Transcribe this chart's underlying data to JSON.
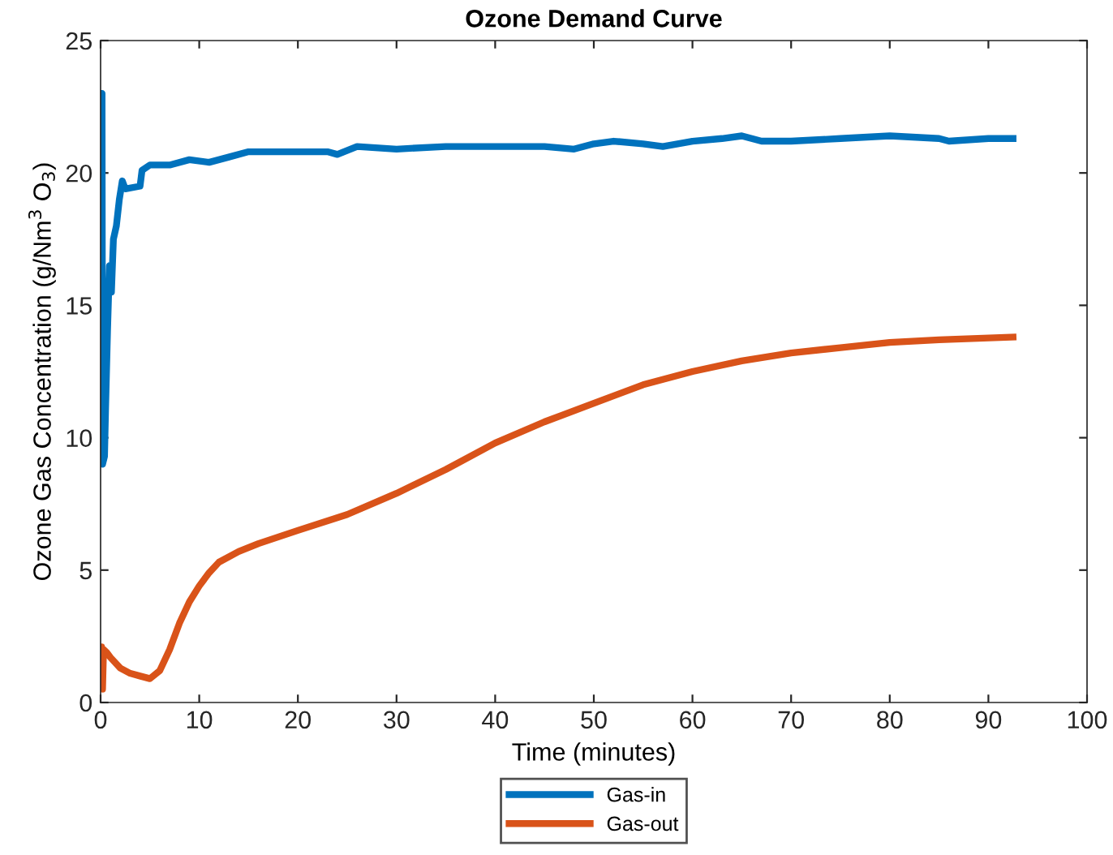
{
  "chart_data": {
    "type": "line",
    "title": "Ozone Demand Curve",
    "xlabel": "Time (minutes)",
    "ylabel": "Ozone Gas Concentration (g/Nm$^{3}$ O$_{3}$)",
    "xlim": [
      0,
      100
    ],
    "xticks": [
      0,
      10,
      20,
      30,
      40,
      50,
      60,
      70,
      80,
      90,
      100
    ],
    "ylim": [
      0,
      25
    ],
    "yticks": [
      0,
      5,
      10,
      15,
      20,
      25
    ],
    "grid": false,
    "legend": "bottom",
    "series": [
      {
        "name": "Gas-in",
        "color": "#0072bd",
        "x": [
          0,
          0.15,
          0.2,
          0.4,
          0.5,
          0.7,
          0.9,
          1.1,
          1.3,
          1.6,
          1.9,
          2.2,
          2.5,
          4,
          4.2,
          5,
          7,
          9,
          11,
          13,
          15,
          20,
          23,
          24,
          26,
          30,
          35,
          40,
          45,
          48,
          50,
          52,
          55,
          57,
          60,
          63,
          65,
          67,
          70,
          75,
          80,
          85,
          86,
          90,
          92.5
        ],
        "values": [
          23,
          23,
          9,
          9.3,
          11,
          14,
          16.5,
          15.5,
          17.5,
          18,
          19,
          19.7,
          19.4,
          19.5,
          20.1,
          20.3,
          20.3,
          20.5,
          20.4,
          20.6,
          20.8,
          20.8,
          20.8,
          20.7,
          21,
          20.9,
          21,
          21,
          21,
          20.9,
          21.1,
          21.2,
          21.1,
          21,
          21.2,
          21.3,
          21.4,
          21.2,
          21.2,
          21.3,
          21.4,
          21.3,
          21.2,
          21.3,
          21.3
        ]
      },
      {
        "name": "Gas-out",
        "color": "#d95319",
        "x": [
          0,
          0.1,
          0.2,
          0.3,
          0.6,
          1,
          2,
          3,
          4,
          5,
          6,
          7,
          8,
          9,
          10,
          11,
          12,
          14,
          16,
          20,
          25,
          30,
          35,
          40,
          45,
          50,
          55,
          60,
          65,
          70,
          75,
          80,
          85,
          92.5
        ],
        "values": [
          0.6,
          2.1,
          0.5,
          2,
          1.9,
          1.7,
          1.3,
          1.1,
          1.0,
          0.9,
          1.2,
          2,
          3,
          3.8,
          4.4,
          4.9,
          5.3,
          5.7,
          6,
          6.5,
          7.1,
          7.9,
          8.8,
          9.8,
          10.6,
          11.3,
          12,
          12.5,
          12.9,
          13.2,
          13.4,
          13.6,
          13.7,
          13.8
        ]
      }
    ]
  }
}
